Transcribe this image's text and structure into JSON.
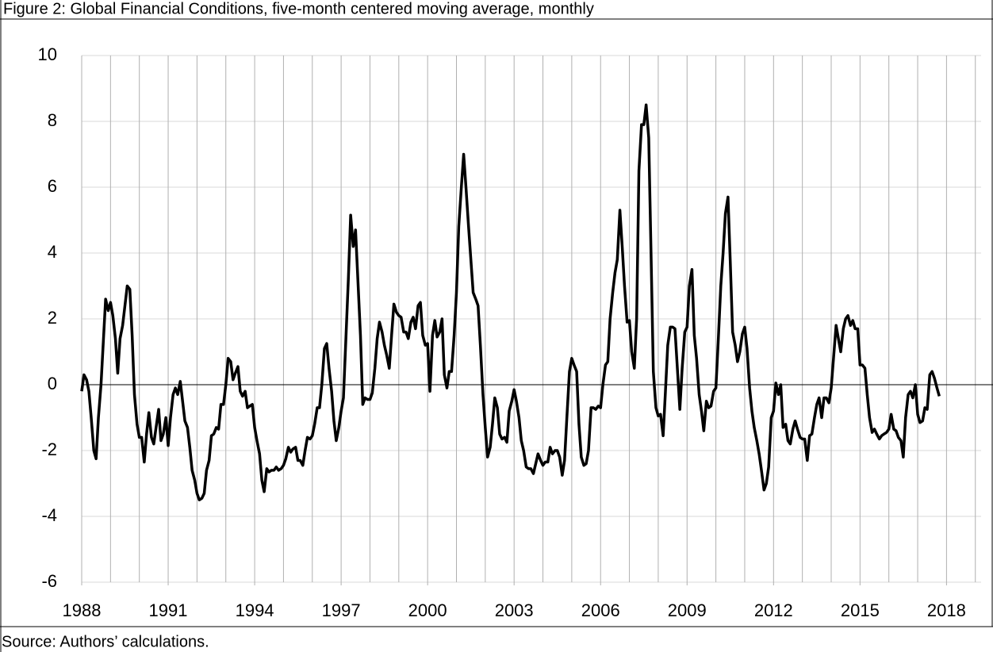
{
  "chart_data": {
    "type": "line",
    "title": "Figure 2: Global Financial Conditions, five-month centered moving average, monthly",
    "source": "Source: Authors’ calculations.",
    "color": "#000000",
    "xlim": [
      1988,
      2019.2
    ],
    "xticks": [
      1988,
      1991,
      1994,
      1997,
      2000,
      2003,
      2006,
      2009,
      2012,
      2015,
      2018
    ],
    "x_grid_interval": 1,
    "ylim": [
      -6,
      10
    ],
    "yticks": [
      -6,
      -4,
      -2,
      0,
      2,
      4,
      6,
      8,
      10
    ],
    "grid": true,
    "x": [
      1988,
      1988.08,
      1988.17,
      1988.25,
      1988.33,
      1988.42,
      1988.5,
      1988.58,
      1988.67,
      1988.75,
      1988.83,
      1988.92,
      1989,
      1989.08,
      1989.17,
      1989.25,
      1989.33,
      1989.42,
      1989.5,
      1989.58,
      1989.67,
      1989.75,
      1989.83,
      1989.92,
      1990,
      1990.08,
      1990.17,
      1990.25,
      1990.33,
      1990.42,
      1990.5,
      1990.58,
      1990.67,
      1990.75,
      1990.83,
      1990.92,
      1991,
      1991.08,
      1991.17,
      1991.25,
      1991.33,
      1991.42,
      1991.5,
      1991.58,
      1991.67,
      1991.75,
      1991.83,
      1991.92,
      1992,
      1992.08,
      1992.17,
      1992.25,
      1992.33,
      1992.42,
      1992.5,
      1992.58,
      1992.67,
      1992.75,
      1992.83,
      1992.92,
      1993,
      1993.08,
      1993.17,
      1993.25,
      1993.33,
      1993.42,
      1993.5,
      1993.58,
      1993.67,
      1993.75,
      1993.83,
      1993.92,
      1994,
      1994.08,
      1994.17,
      1994.25,
      1994.33,
      1994.42,
      1994.5,
      1994.58,
      1994.67,
      1994.75,
      1994.83,
      1994.92,
      1995,
      1995.08,
      1995.17,
      1995.25,
      1995.33,
      1995.42,
      1995.5,
      1995.58,
      1995.67,
      1995.75,
      1995.83,
      1995.92,
      1996,
      1996.08,
      1996.17,
      1996.25,
      1996.33,
      1996.42,
      1996.5,
      1996.58,
      1996.67,
      1996.75,
      1996.83,
      1996.92,
      1997,
      1997.08,
      1997.17,
      1997.25,
      1997.33,
      1997.42,
      1997.5,
      1997.58,
      1997.67,
      1997.75,
      1997.83,
      1997.92,
      1998,
      1998.08,
      1998.17,
      1998.25,
      1998.33,
      1998.42,
      1998.5,
      1998.58,
      1998.67,
      1998.75,
      1998.83,
      1998.92,
      1999,
      1999.08,
      1999.17,
      1999.25,
      1999.33,
      1999.42,
      1999.5,
      1999.58,
      1999.67,
      1999.75,
      1999.83,
      1999.92,
      2000,
      2000.08,
      2000.17,
      2000.25,
      2000.33,
      2000.42,
      2000.5,
      2000.58,
      2000.67,
      2000.75,
      2000.83,
      2000.92,
      2001,
      2001.08,
      2001.17,
      2001.25,
      2001.33,
      2001.42,
      2001.5,
      2001.58,
      2001.67,
      2001.75,
      2001.83,
      2001.92,
      2002,
      2002.08,
      2002.17,
      2002.25,
      2002.33,
      2002.42,
      2002.5,
      2002.58,
      2002.67,
      2002.75,
      2002.83,
      2002.92,
      2003,
      2003.08,
      2003.17,
      2003.25,
      2003.33,
      2003.42,
      2003.5,
      2003.58,
      2003.67,
      2003.75,
      2003.83,
      2003.92,
      2004,
      2004.08,
      2004.17,
      2004.25,
      2004.33,
      2004.42,
      2004.5,
      2004.58,
      2004.67,
      2004.75,
      2004.83,
      2004.92,
      2005,
      2005.08,
      2005.17,
      2005.25,
      2005.33,
      2005.42,
      2005.5,
      2005.58,
      2005.67,
      2005.75,
      2005.83,
      2005.92,
      2006,
      2006.08,
      2006.17,
      2006.25,
      2006.33,
      2006.42,
      2006.5,
      2006.58,
      2006.67,
      2006.75,
      2006.83,
      2006.92,
      2007,
      2007.08,
      2007.17,
      2007.25,
      2007.33,
      2007.42,
      2007.5,
      2007.58,
      2007.67,
      2007.75,
      2007.83,
      2007.92,
      2008,
      2008.08,
      2008.17,
      2008.25,
      2008.33,
      2008.42,
      2008.5,
      2008.58,
      2008.67,
      2008.75,
      2008.83,
      2008.92,
      2009,
      2009.08,
      2009.17,
      2009.25,
      2009.33,
      2009.42,
      2009.5,
      2009.58,
      2009.67,
      2009.75,
      2009.83,
      2009.92,
      2010,
      2010.08,
      2010.17,
      2010.25,
      2010.33,
      2010.42,
      2010.5,
      2010.58,
      2010.67,
      2010.75,
      2010.83,
      2010.92,
      2011,
      2011.08,
      2011.17,
      2011.25,
      2011.33,
      2011.42,
      2011.5,
      2011.58,
      2011.67,
      2011.75,
      2011.83,
      2011.92,
      2012,
      2012.08,
      2012.17,
      2012.25,
      2012.33,
      2012.42,
      2012.5,
      2012.58,
      2012.67,
      2012.75,
      2012.83,
      2012.92,
      2013,
      2013.08,
      2013.17,
      2013.25,
      2013.33,
      2013.42,
      2013.5,
      2013.58,
      2013.67,
      2013.75,
      2013.83,
      2013.92,
      2014,
      2014.08,
      2014.17,
      2014.25,
      2014.33,
      2014.42,
      2014.5,
      2014.58,
      2014.67,
      2014.75,
      2014.83,
      2014.92,
      2015,
      2015.08,
      2015.17,
      2015.25,
      2015.33,
      2015.42,
      2015.5,
      2015.58,
      2015.67,
      2015.75,
      2015.83,
      2015.92,
      2016,
      2016.08,
      2016.17,
      2016.25,
      2016.33,
      2016.42,
      2016.5,
      2016.58,
      2016.67,
      2016.75,
      2016.83,
      2016.92,
      2017,
      2017.08,
      2017.17,
      2017.25,
      2017.33,
      2017.42,
      2017.5,
      2017.58,
      2017.67,
      2017.75
    ],
    "values": [
      -0.2,
      0.3,
      0.15,
      -0.2,
      -1.0,
      -2.0,
      -2.25,
      -1.0,
      0.0,
      1.3,
      2.6,
      2.25,
      2.5,
      2.1,
      1.4,
      0.35,
      1.4,
      1.8,
      2.4,
      3.0,
      2.9,
      1.5,
      -0.3,
      -1.2,
      -1.6,
      -1.6,
      -2.35,
      -1.5,
      -0.85,
      -1.6,
      -1.8,
      -1.3,
      -0.75,
      -1.7,
      -1.5,
      -1.0,
      -1.85,
      -1.0,
      -0.3,
      -0.1,
      -0.3,
      0.1,
      -0.5,
      -1.1,
      -1.3,
      -1.9,
      -2.6,
      -2.9,
      -3.3,
      -3.5,
      -3.45,
      -3.3,
      -2.6,
      -2.3,
      -1.55,
      -1.5,
      -1.3,
      -1.35,
      -0.6,
      -0.6,
      0.0,
      0.8,
      0.7,
      0.15,
      0.35,
      0.55,
      -0.2,
      -0.35,
      -0.2,
      -0.7,
      -0.65,
      -0.6,
      -1.3,
      -1.7,
      -2.1,
      -2.9,
      -3.25,
      -2.55,
      -2.65,
      -2.6,
      -2.6,
      -2.5,
      -2.6,
      -2.55,
      -2.45,
      -2.25,
      -1.9,
      -2.05,
      -1.95,
      -1.9,
      -2.3,
      -2.3,
      -2.45,
      -2.0,
      -1.6,
      -1.65,
      -1.55,
      -1.2,
      -0.7,
      -0.7,
      0.0,
      1.1,
      1.25,
      0.5,
      -0.2,
      -1.1,
      -1.7,
      -1.3,
      -0.8,
      -0.4,
      1.5,
      3.2,
      5.15,
      4.2,
      4.7,
      3.2,
      1.5,
      -0.6,
      -0.4,
      -0.45,
      -0.45,
      -0.25,
      0.5,
      1.4,
      1.9,
      1.6,
      1.2,
      0.9,
      0.5,
      1.5,
      2.45,
      2.2,
      2.1,
      2.05,
      1.6,
      1.6,
      1.4,
      1.9,
      2.05,
      1.7,
      2.4,
      2.5,
      1.5,
      1.2,
      1.25,
      -0.2,
      1.5,
      1.95,
      1.45,
      1.6,
      2.0,
      0.3,
      -0.1,
      0.4,
      0.4,
      1.5,
      2.8,
      4.8,
      6.0,
      7.0,
      6.0,
      4.8,
      3.8,
      2.8,
      2.6,
      2.4,
      1.2,
      -0.3,
      -1.3,
      -2.2,
      -1.9,
      -1.2,
      -0.4,
      -0.7,
      -1.5,
      -1.65,
      -1.6,
      -1.75,
      -0.8,
      -0.5,
      -0.15,
      -0.5,
      -1.0,
      -1.7,
      -2.0,
      -2.5,
      -2.55,
      -2.55,
      -2.7,
      -2.4,
      -2.1,
      -2.3,
      -2.45,
      -2.35,
      -2.35,
      -1.9,
      -2.1,
      -2.0,
      -2.0,
      -2.2,
      -2.75,
      -2.3,
      -1.0,
      0.4,
      0.8,
      0.6,
      0.4,
      -1.2,
      -2.2,
      -2.45,
      -2.4,
      -2.0,
      -0.7,
      -0.7,
      -0.75,
      -0.65,
      -0.7,
      0.0,
      0.6,
      0.7,
      2.0,
      2.8,
      3.4,
      3.8,
      5.3,
      4.2,
      3.0,
      1.9,
      1.95,
      1.0,
      0.5,
      2.0,
      6.5,
      7.9,
      7.9,
      8.5,
      7.5,
      4.0,
      0.4,
      -0.7,
      -0.95,
      -0.9,
      -1.55,
      -0.2,
      1.2,
      1.75,
      1.75,
      1.7,
      0.4,
      -0.75,
      0.5,
      1.6,
      1.75,
      3.0,
      3.5,
      1.5,
      0.8,
      -0.3,
      -0.8,
      -1.4,
      -0.5,
      -0.7,
      -0.65,
      -0.2,
      -0.1,
      1.3,
      3.0,
      4.0,
      5.2,
      5.7,
      3.7,
      1.6,
      1.2,
      0.7,
      1.0,
      1.55,
      1.75,
      1.1,
      -0.1,
      -0.8,
      -1.3,
      -1.7,
      -2.1,
      -2.6,
      -3.2,
      -3.0,
      -2.5,
      -1.0,
      -0.8,
      0.05,
      -0.3,
      0.0,
      -1.3,
      -1.2,
      -1.7,
      -1.8,
      -1.35,
      -1.1,
      -1.35,
      -1.6,
      -1.65,
      -1.65,
      -2.3,
      -1.55,
      -1.5,
      -1.0,
      -0.6,
      -0.4,
      -1.0,
      -0.4,
      -0.4,
      -0.55,
      -0.1,
      0.8,
      1.8,
      1.4,
      1.0,
      1.7,
      2.0,
      2.1,
      1.8,
      1.95,
      1.7,
      1.7,
      0.6,
      0.6,
      0.5,
      -0.3,
      -1.0,
      -1.45,
      -1.35,
      -1.5,
      -1.65,
      -1.55,
      -1.5,
      -1.45,
      -1.35,
      -0.9,
      -1.35,
      -1.4,
      -1.6,
      -1.7,
      -2.2,
      -1.0,
      -0.3,
      -0.2,
      -0.4,
      0.0,
      -0.9,
      -1.15,
      -1.1,
      -0.7,
      -0.75,
      0.3,
      0.4,
      0.2,
      -0.1,
      -0.35
    ]
  }
}
